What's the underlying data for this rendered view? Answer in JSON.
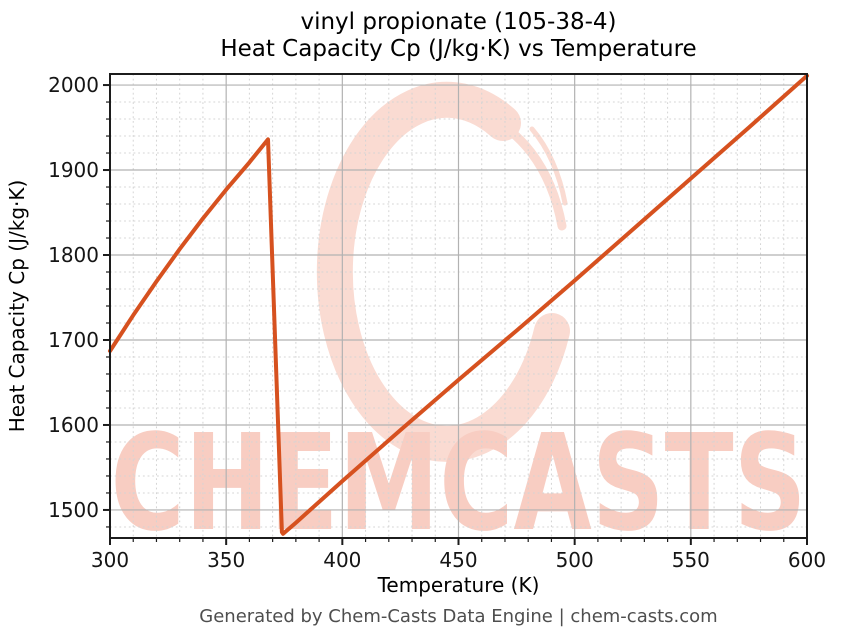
{
  "header": {
    "title_line1": "vinyl propionate (105-38-4)",
    "title_line2": "Heat Capacity Cp (J/kg·K) vs Temperature"
  },
  "footer": {
    "text": "Generated by Chem-Casts Data Engine | chem-casts.com"
  },
  "watermark": {
    "text": "CHEMCASTS",
    "logo": "brush-ring-logo",
    "text_color": "#f8cdc2",
    "ring_color": "#fadbd2"
  },
  "chart_data": {
    "type": "line",
    "title": "vinyl propionate (105-38-4) Heat Capacity Cp (J/kg·K) vs Temperature",
    "xlabel": "Temperature (K)",
    "ylabel": "Heat Capacity Cp (J/kg·K)",
    "xlim": [
      300,
      600
    ],
    "ylim": [
      1467,
      2013
    ],
    "xticks": [
      300,
      350,
      400,
      450,
      500,
      550,
      600
    ],
    "yticks": [
      1500,
      1600,
      1700,
      1800,
      1900,
      2000
    ],
    "minor_x_step": 10,
    "minor_y_step": 20,
    "grid": {
      "major": true,
      "minor": true
    },
    "legend": "none",
    "line_color": "#d6511f",
    "axis_color": "#1c1c1c",
    "major_grid_color": "#b2b2b2",
    "minor_grid_color": "#d4d4d4",
    "series": [
      {
        "name": "Heat Capacity Cp",
        "points": [
          [
            300,
            1687
          ],
          [
            310,
            1729
          ],
          [
            320,
            1769
          ],
          [
            330,
            1807
          ],
          [
            340,
            1843
          ],
          [
            350,
            1877
          ],
          [
            360,
            1909
          ],
          [
            368,
            1936
          ],
          [
            374,
            1474
          ],
          [
            374.5,
            1472
          ],
          [
            380,
            1485
          ],
          [
            400,
            1534
          ],
          [
            425,
            1594
          ],
          [
            450,
            1653
          ],
          [
            475,
            1711
          ],
          [
            500,
            1770
          ],
          [
            525,
            1830
          ],
          [
            550,
            1890
          ],
          [
            575,
            1950
          ],
          [
            600,
            2011
          ]
        ]
      }
    ]
  }
}
